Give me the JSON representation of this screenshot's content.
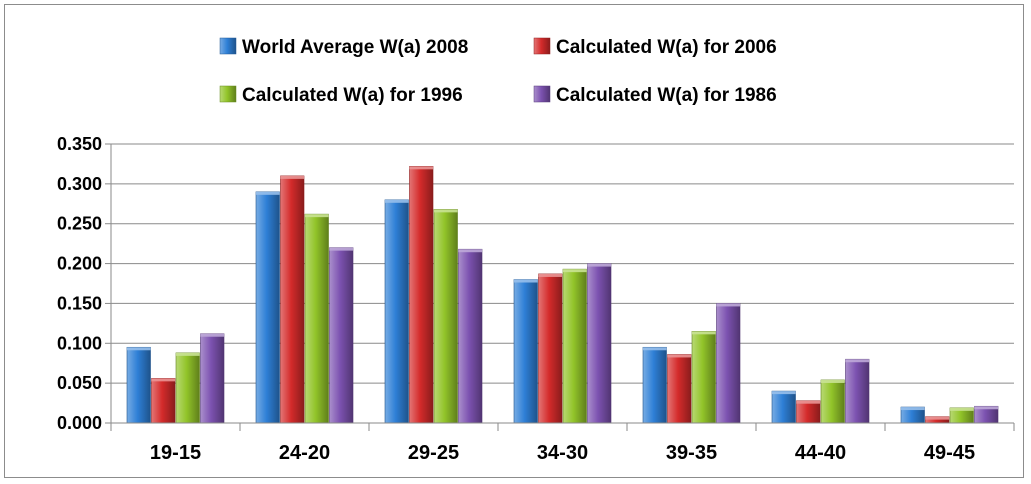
{
  "chart_data": {
    "type": "bar",
    "categories": [
      "19-15",
      "24-20",
      "29-25",
      "34-30",
      "39-35",
      "44-40",
      "49-45"
    ],
    "series": [
      {
        "name": "World Average W(a) 2008",
        "color": "#2e7fd6",
        "values": [
          0.095,
          0.29,
          0.28,
          0.18,
          0.095,
          0.04,
          0.02
        ]
      },
      {
        "name": "Calculated W(a) for 2006",
        "color": "#d42b2b",
        "values": [
          0.056,
          0.31,
          0.322,
          0.187,
          0.086,
          0.028,
          0.008
        ]
      },
      {
        "name": "Calculated W(a) for 1996",
        "color": "#92c429",
        "values": [
          0.088,
          0.262,
          0.268,
          0.193,
          0.115,
          0.054,
          0.019
        ]
      },
      {
        "name": "Calculated W(a) for 1986",
        "color": "#7c52b0",
        "values": [
          0.112,
          0.22,
          0.218,
          0.2,
          0.15,
          0.08,
          0.021
        ]
      }
    ],
    "yticks": [
      "0.000",
      "0.050",
      "0.100",
      "0.150",
      "0.200",
      "0.250",
      "0.300",
      "0.350"
    ],
    "ylim": [
      0,
      0.35
    ],
    "grid": true,
    "legend_position": "top"
  }
}
